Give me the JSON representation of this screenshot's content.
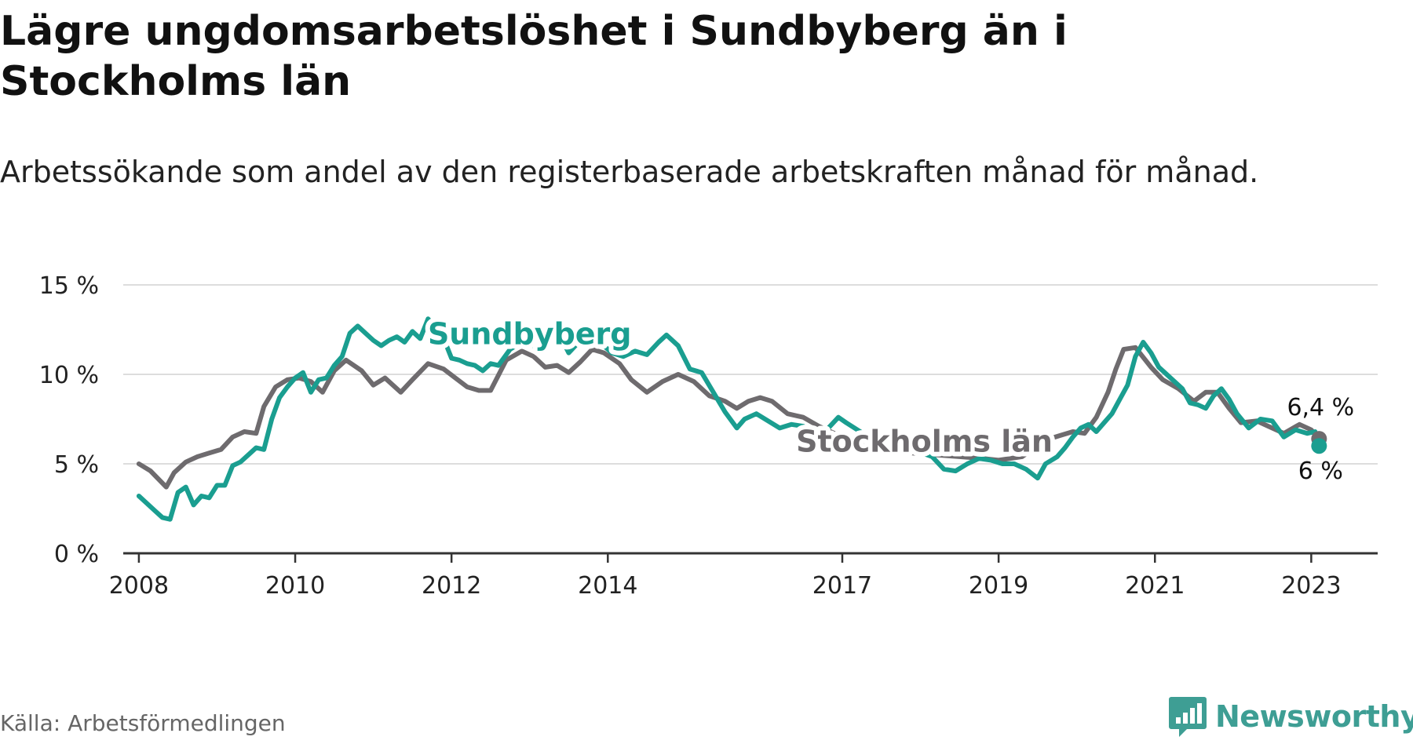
{
  "title": "Lägre ungdomsarbetslöshet i Sundbyberg än i Stockholms län",
  "subtitle": "Arbetssökande som andel av den registerbaserade arbetskraften månad för månad.",
  "source": "Källa: Arbetsförmedlingen",
  "brand": "Newsworthy",
  "colors": {
    "sundbyberg": "#1a9e90",
    "stockholm": "#6e6b6e",
    "grid": "#dddddd",
    "axis": "#333333",
    "brand": "#3e9e94"
  },
  "chart_data": {
    "type": "line",
    "title": "Lägre ungdomsarbetslöshet i Sundbyberg än i Stockholms län",
    "xlabel": "",
    "ylabel": "",
    "ylim": [
      0,
      15
    ],
    "xlim": [
      2007.8,
      2023.85
    ],
    "y_ticks": [
      0,
      5,
      10,
      15
    ],
    "y_tick_labels": [
      "0 %",
      "5 %",
      "10 %",
      "15 %"
    ],
    "x_ticks": [
      2008,
      2010,
      2012,
      2014,
      2017,
      2019,
      2021,
      2023
    ],
    "x_tick_labels": [
      "2008",
      "2010",
      "2012",
      "2014",
      "2017",
      "2019",
      "2021",
      "2023"
    ],
    "series": [
      {
        "name": "Stockholms län",
        "label": "Stockholms län",
        "end_label": "6,4 %",
        "color": "#6e6b6e",
        "x": [
          2008.0,
          2008.15,
          2008.35,
          2008.45,
          2008.6,
          2008.75,
          2008.9,
          2009.05,
          2009.2,
          2009.35,
          2009.5,
          2009.6,
          2009.75,
          2009.9,
          2010.05,
          2010.2,
          2010.35,
          2010.5,
          2010.65,
          2010.85,
          2011.0,
          2011.15,
          2011.35,
          2011.5,
          2011.7,
          2011.9,
          2012.05,
          2012.2,
          2012.35,
          2012.5,
          2012.7,
          2012.9,
          2013.05,
          2013.2,
          2013.35,
          2013.5,
          2013.65,
          2013.8,
          2013.95,
          2014.15,
          2014.3,
          2014.5,
          2014.7,
          2014.9,
          2015.1,
          2015.3,
          2015.5,
          2015.65,
          2015.8,
          2015.95,
          2016.1,
          2016.3,
          2016.5,
          2016.7,
          2016.85,
          2017.0,
          2017.3,
          2017.6,
          2017.9,
          2018.2,
          2018.5,
          2018.8,
          2019.0,
          2019.15,
          2019.3,
          2019.5,
          2019.65,
          2019.8,
          2019.95,
          2020.1,
          2020.25,
          2020.4,
          2020.5,
          2020.6,
          2020.75,
          2020.95,
          2021.1,
          2021.3,
          2021.5,
          2021.65,
          2021.8,
          2021.95,
          2022.1,
          2022.3,
          2022.5,
          2022.65,
          2022.85,
          2023.0,
          2023.1
        ],
        "values": [
          5.0,
          4.6,
          3.7,
          4.5,
          5.1,
          5.4,
          5.6,
          5.8,
          6.5,
          6.8,
          6.7,
          8.2,
          9.3,
          9.7,
          9.8,
          9.6,
          9.0,
          10.2,
          10.8,
          10.2,
          9.4,
          9.8,
          9.0,
          9.7,
          10.6,
          10.3,
          9.8,
          9.3,
          9.1,
          9.1,
          10.8,
          11.3,
          11.0,
          10.4,
          10.5,
          10.1,
          10.7,
          11.4,
          11.2,
          10.6,
          9.7,
          9.0,
          9.6,
          10.0,
          9.6,
          8.8,
          8.5,
          8.1,
          8.5,
          8.7,
          8.5,
          7.8,
          7.6,
          7.1,
          6.8,
          6.5,
          6.0,
          5.8,
          5.6,
          5.5,
          5.4,
          5.3,
          5.2,
          5.3,
          5.4,
          6.0,
          6.4,
          6.6,
          6.8,
          6.7,
          7.6,
          9.0,
          10.3,
          11.4,
          11.5,
          10.4,
          9.7,
          9.2,
          8.5,
          9.0,
          9.0,
          8.1,
          7.3,
          7.4,
          7.0,
          6.7,
          7.2,
          6.9,
          6.4
        ]
      },
      {
        "name": "Sundbyberg",
        "label": "Sundbyberg",
        "end_label": "6 %",
        "color": "#1a9e90",
        "x": [
          2008.0,
          2008.1,
          2008.2,
          2008.3,
          2008.4,
          2008.5,
          2008.6,
          2008.7,
          2008.8,
          2008.9,
          2009.0,
          2009.1,
          2009.2,
          2009.3,
          2009.4,
          2009.5,
          2009.6,
          2009.7,
          2009.8,
          2009.9,
          2010.0,
          2010.1,
          2010.2,
          2010.3,
          2010.4,
          2010.5,
          2010.6,
          2010.7,
          2010.8,
          2010.9,
          2011.0,
          2011.1,
          2011.2,
          2011.3,
          2011.4,
          2011.5,
          2011.6,
          2011.7,
          2011.8,
          2011.9,
          2012.0,
          2012.1,
          2012.2,
          2012.3,
          2012.4,
          2012.5,
          2012.6,
          2012.75,
          2012.9,
          2013.05,
          2013.2,
          2013.35,
          2013.5,
          2013.65,
          2013.8,
          2013.95,
          2014.05,
          2014.2,
          2014.35,
          2014.5,
          2014.65,
          2014.75,
          2014.9,
          2015.05,
          2015.2,
          2015.35,
          2015.5,
          2015.65,
          2015.75,
          2015.9,
          2016.05,
          2016.2,
          2016.35,
          2016.5,
          2016.65,
          2016.8,
          2016.95,
          2017.05,
          2017.3,
          2017.6,
          2017.9,
          2018.15,
          2018.3,
          2018.45,
          2018.6,
          2018.75,
          2018.9,
          2019.05,
          2019.2,
          2019.35,
          2019.5,
          2019.6,
          2019.75,
          2019.85,
          2019.95,
          2020.05,
          2020.15,
          2020.25,
          2020.35,
          2020.45,
          2020.55,
          2020.65,
          2020.75,
          2020.85,
          2020.95,
          2021.05,
          2021.15,
          2021.25,
          2021.35,
          2021.45,
          2021.55,
          2021.65,
          2021.75,
          2021.85,
          2021.95,
          2022.05,
          2022.2,
          2022.35,
          2022.5,
          2022.65,
          2022.8,
          2022.95,
          2023.05,
          2023.1
        ],
        "values": [
          3.2,
          2.8,
          2.4,
          2.0,
          1.9,
          3.4,
          3.7,
          2.7,
          3.2,
          3.1,
          3.8,
          3.8,
          4.9,
          5.1,
          5.5,
          5.9,
          5.8,
          7.5,
          8.7,
          9.3,
          9.8,
          10.1,
          9.0,
          9.7,
          9.8,
          10.5,
          11.0,
          12.3,
          12.7,
          12.3,
          11.9,
          11.6,
          11.9,
          12.1,
          11.8,
          12.4,
          12.0,
          13.1,
          12.6,
          12.0,
          10.9,
          10.8,
          10.6,
          10.5,
          10.2,
          10.6,
          10.5,
          11.4,
          11.8,
          11.6,
          12.3,
          12.5,
          11.2,
          11.9,
          12.1,
          11.6,
          11.2,
          11.0,
          11.3,
          11.1,
          11.8,
          12.2,
          11.6,
          10.3,
          10.1,
          9.0,
          7.9,
          7.0,
          7.5,
          7.8,
          7.4,
          7.0,
          7.2,
          7.1,
          6.7,
          6.9,
          7.6,
          7.3,
          6.6,
          6.3,
          5.8,
          5.4,
          4.7,
          4.6,
          5.0,
          5.3,
          5.2,
          5.0,
          5.0,
          4.7,
          4.2,
          5.0,
          5.4,
          5.9,
          6.5,
          7.0,
          7.2,
          6.8,
          7.3,
          7.8,
          8.6,
          9.4,
          11.0,
          11.8,
          11.2,
          10.4,
          10.0,
          9.6,
          9.2,
          8.4,
          8.3,
          8.1,
          8.8,
          9.2,
          8.6,
          7.8,
          7.0,
          7.5,
          7.4,
          6.5,
          6.9,
          6.7,
          6.8,
          6.0
        ]
      }
    ]
  }
}
